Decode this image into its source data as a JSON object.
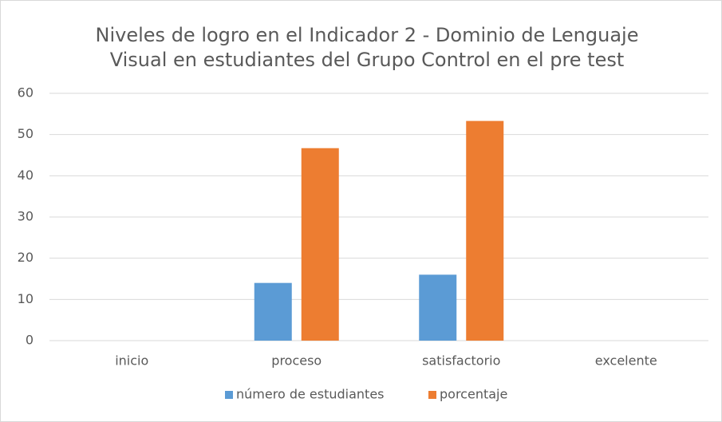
{
  "chart_data": {
    "type": "bar",
    "title": [
      "Niveles de logro en el Indicador 2 - Dominio de Lenguaje",
      "Visual en estudiantes del Grupo Control en el pre test"
    ],
    "categories": [
      "inicio",
      "proceso",
      "satisfactorio",
      "excelente"
    ],
    "series": [
      {
        "name": "número de estudiantes",
        "color": "#5b9bd5",
        "values": [
          0,
          14,
          16,
          0
        ]
      },
      {
        "name": "porcentaje",
        "color": "#ed7d31",
        "values": [
          0,
          46.7,
          53.3,
          0
        ]
      }
    ],
    "ylim": [
      0,
      60
    ],
    "yticks": [
      0,
      10,
      20,
      30,
      40,
      50,
      60
    ],
    "grid": true,
    "legend": "bottom"
  }
}
